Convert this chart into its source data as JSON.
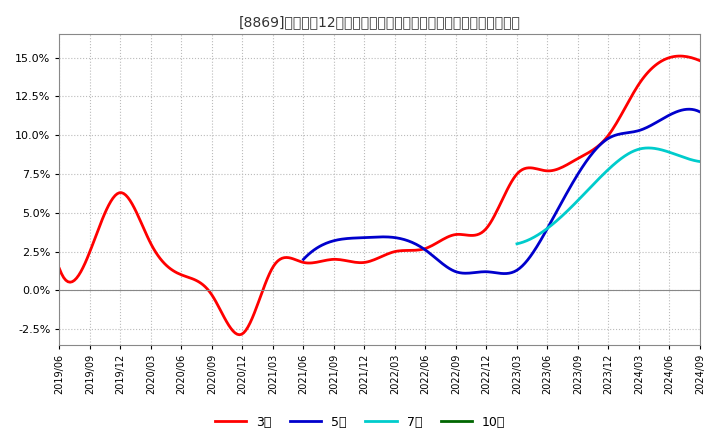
{
  "title": "[8869]　売上高12か月移動合計の対前年同期増減率の平均値の推移",
  "bg_color": "#ffffff",
  "plot_bg_color": "#ffffff",
  "grid_color": "#bbbbbb",
  "ylim": [
    -0.035,
    0.165
  ],
  "yticks": [
    -0.025,
    0.0,
    0.025,
    0.05,
    0.075,
    0.1,
    0.125,
    0.15
  ],
  "series": {
    "3year": {
      "color": "#ff0000",
      "label": "3年",
      "dates_num": [
        0,
        3,
        6,
        9,
        12,
        15,
        18,
        21,
        24,
        27,
        30,
        33,
        36,
        39,
        42,
        45,
        48,
        51,
        54,
        57,
        60,
        63
      ],
      "values": [
        0.014,
        0.025,
        0.063,
        0.03,
        0.01,
        -0.003,
        -0.028,
        0.015,
        0.018,
        0.02,
        0.018,
        0.025,
        0.027,
        0.036,
        0.04,
        0.075,
        0.077,
        0.085,
        0.1,
        0.133,
        0.15,
        0.148
      ]
    },
    "5year": {
      "color": "#0000cc",
      "label": "5年",
      "dates_num": [
        24,
        27,
        30,
        33,
        36,
        39,
        42,
        45,
        48,
        51,
        54,
        57,
        60,
        63
      ],
      "values": [
        0.02,
        0.032,
        0.034,
        0.034,
        0.026,
        0.012,
        0.012,
        0.013,
        0.04,
        0.075,
        0.098,
        0.103,
        0.113,
        0.115
      ]
    },
    "7year": {
      "color": "#00cccc",
      "label": "7年",
      "dates_num": [
        45,
        48,
        51,
        54,
        57,
        60,
        63
      ],
      "values": [
        0.03,
        0.04,
        0.058,
        0.078,
        0.091,
        0.089,
        0.083
      ]
    },
    "10year": {
      "color": "#006600",
      "label": "10年",
      "dates_num": [],
      "values": []
    }
  },
  "xtick_labels": [
    "2019/06",
    "2019/09",
    "2019/12",
    "2020/03",
    "2020/06",
    "2020/09",
    "2020/12",
    "2021/03",
    "2021/06",
    "2021/09",
    "2021/12",
    "2022/03",
    "2022/06",
    "2022/09",
    "2022/12",
    "2023/03",
    "2023/06",
    "2023/09",
    "2023/12",
    "2024/03",
    "2024/06",
    "2024/09"
  ],
  "xtick_nums": [
    0,
    3,
    6,
    9,
    12,
    15,
    18,
    21,
    24,
    27,
    30,
    33,
    36,
    39,
    42,
    45,
    48,
    51,
    54,
    57,
    60,
    63
  ]
}
